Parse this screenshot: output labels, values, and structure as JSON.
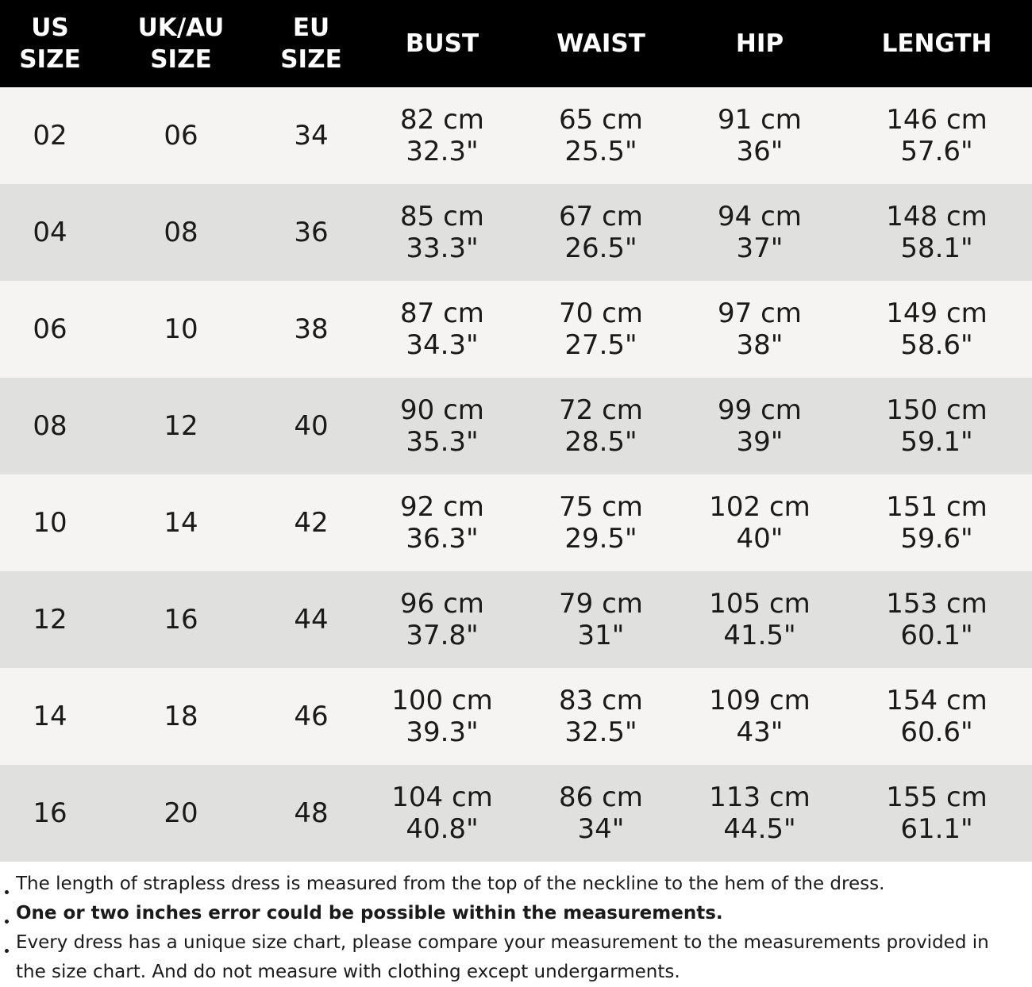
{
  "table": {
    "headers": [
      [
        "US",
        "SIZE"
      ],
      [
        "UK/AU",
        "SIZE"
      ],
      [
        "EU",
        "SIZE"
      ],
      [
        "BUST"
      ],
      [
        "WAIST"
      ],
      [
        "HIP"
      ],
      [
        "LENGTH"
      ]
    ],
    "rows": [
      {
        "us": "02",
        "uk": "06",
        "eu": "34",
        "bust_cm": "82 cm",
        "bust_in": "32.3\"",
        "waist_cm": "65 cm",
        "waist_in": "25.5\"",
        "hip_cm": "91 cm",
        "hip_in": "36\"",
        "length_cm": "146 cm",
        "length_in": "57.6\""
      },
      {
        "us": "04",
        "uk": "08",
        "eu": "36",
        "bust_cm": "85 cm",
        "bust_in": "33.3\"",
        "waist_cm": "67 cm",
        "waist_in": "26.5\"",
        "hip_cm": "94 cm",
        "hip_in": "37\"",
        "length_cm": "148 cm",
        "length_in": "58.1\""
      },
      {
        "us": "06",
        "uk": "10",
        "eu": "38",
        "bust_cm": "87 cm",
        "bust_in": "34.3\"",
        "waist_cm": "70 cm",
        "waist_in": "27.5\"",
        "hip_cm": "97 cm",
        "hip_in": "38\"",
        "length_cm": "149 cm",
        "length_in": "58.6\""
      },
      {
        "us": "08",
        "uk": "12",
        "eu": "40",
        "bust_cm": "90 cm",
        "bust_in": "35.3\"",
        "waist_cm": "72 cm",
        "waist_in": "28.5\"",
        "hip_cm": "99 cm",
        "hip_in": "39\"",
        "length_cm": "150 cm",
        "length_in": "59.1\""
      },
      {
        "us": "10",
        "uk": "14",
        "eu": "42",
        "bust_cm": "92 cm",
        "bust_in": "36.3\"",
        "waist_cm": "75 cm",
        "waist_in": "29.5\"",
        "hip_cm": "102 cm",
        "hip_in": "40\"",
        "length_cm": "151 cm",
        "length_in": "59.6\""
      },
      {
        "us": "12",
        "uk": "16",
        "eu": "44",
        "bust_cm": "96 cm",
        "bust_in": "37.8\"",
        "waist_cm": "79 cm",
        "waist_in": "31\"",
        "hip_cm": "105 cm",
        "hip_in": "41.5\"",
        "length_cm": "153 cm",
        "length_in": "60.1\""
      },
      {
        "us": "14",
        "uk": "18",
        "eu": "46",
        "bust_cm": "100 cm",
        "bust_in": "39.3\"",
        "waist_cm": "83 cm",
        "waist_in": "32.5\"",
        "hip_cm": "109 cm",
        "hip_in": "43\"",
        "length_cm": "154 cm",
        "length_in": "60.6\""
      },
      {
        "us": "16",
        "uk": "20",
        "eu": "48",
        "bust_cm": "104 cm",
        "bust_in": "40.8\"",
        "waist_cm": "86 cm",
        "waist_in": "34\"",
        "hip_cm": "113 cm",
        "hip_in": "44.5\"",
        "length_cm": "155 cm",
        "length_in": "61.1\""
      }
    ]
  },
  "notes": [
    {
      "text": "The length of strapless dress is measured from the top of the neckline to the hem of the dress.",
      "bold": false
    },
    {
      "text": "One or two inches error could be possible within the measurements.",
      "bold": true
    },
    {
      "text": "Every dress has a unique size chart, please compare your measurement to the measurements provided in the size chart. And do not measure with clothing except undergarments.",
      "bold": false
    }
  ],
  "colors": {
    "header_bg": "#000000",
    "header_text": "#ffffff",
    "row_light": "#f5f4f2",
    "row_dark": "#e0e0de",
    "text": "#1a1a1a"
  }
}
